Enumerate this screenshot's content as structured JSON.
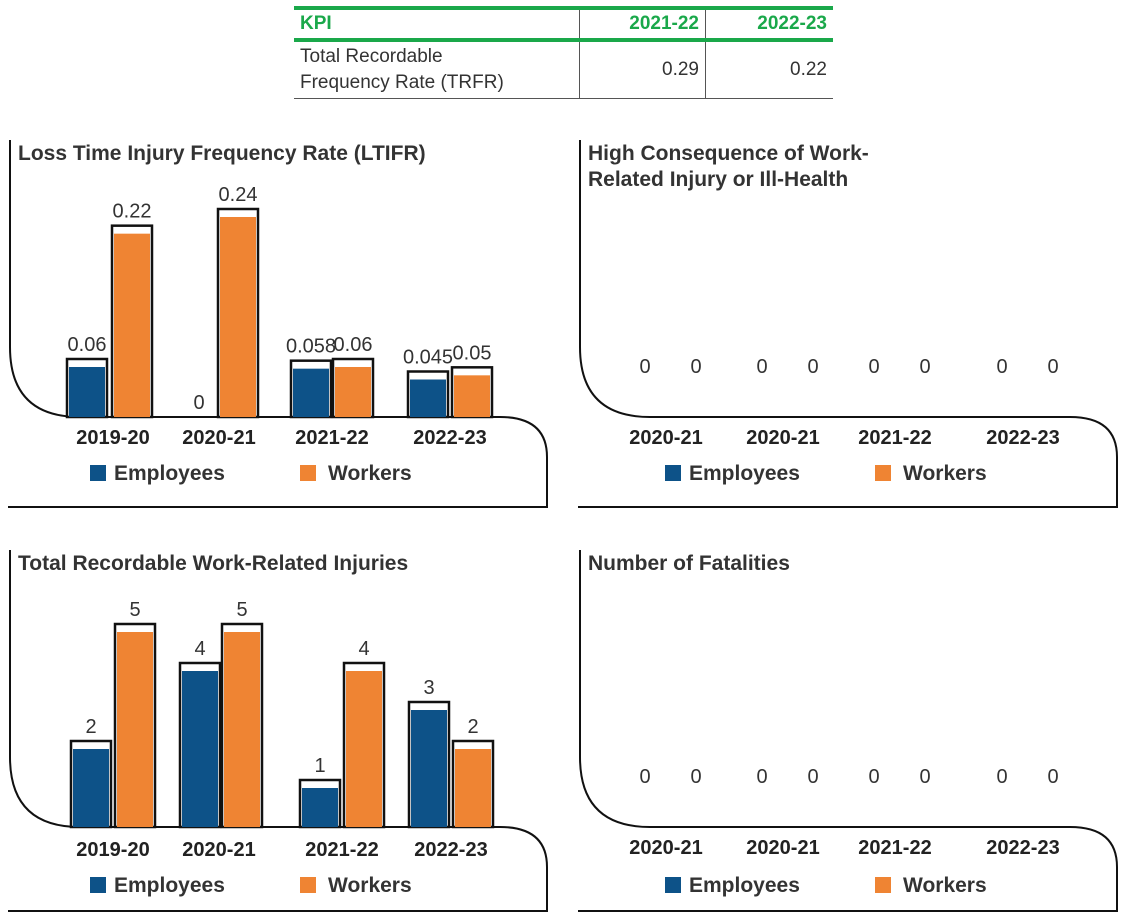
{
  "kpi_table": {
    "headers": [
      "KPI",
      "2021-22",
      "2022-23"
    ],
    "rows": [
      {
        "label_line1": "Total Recordable",
        "label_line2": "Frequency Rate (TRFR)",
        "v1": "0.29",
        "v2": "0.22"
      }
    ]
  },
  "colors": {
    "employees": "#0d5288",
    "workers": "#ef8433",
    "kpi_accent": "#1aa84a"
  },
  "chart_data": [
    {
      "type": "bar",
      "title_lines": [
        "Loss Time Injury Frequency Rate (LTIFR)"
      ],
      "categories": [
        "2019-20",
        "2020-21",
        "2021-22",
        "2022-23"
      ],
      "series": [
        {
          "name": "Employees",
          "values": [
            0.06,
            0,
            0.058,
            0.045
          ],
          "labels": [
            "0.06",
            "0",
            "0.058",
            "0.045"
          ]
        },
        {
          "name": "Workers",
          "values": [
            0.22,
            0.24,
            0.06,
            0.05
          ],
          "labels": [
            "0.22",
            "0.24",
            "0.06",
            "0.05"
          ]
        }
      ],
      "legend": "bottom"
    },
    {
      "type": "bar",
      "title_lines": [
        "High Consequence of Work-",
        "Related Injury or Ill-Health"
      ],
      "categories": [
        "2020-21",
        "2020-21",
        "2021-22",
        "2022-23"
      ],
      "series": [
        {
          "name": "Employees",
          "values": [
            0,
            0,
            0,
            0
          ],
          "labels": [
            "0",
            "0",
            "0",
            "0"
          ]
        },
        {
          "name": "Workers",
          "values": [
            0,
            0,
            0,
            0
          ],
          "labels": [
            "0",
            "0",
            "0",
            "0"
          ]
        }
      ],
      "legend": "bottom"
    },
    {
      "type": "bar",
      "title_lines": [
        "Total Recordable Work-Related Injuries"
      ],
      "categories": [
        "2019-20",
        "2020-21",
        "2021-22",
        "2022-23"
      ],
      "series": [
        {
          "name": "Employees",
          "values": [
            2,
            4,
            1,
            3
          ],
          "labels": [
            "2",
            "4",
            "1",
            "3"
          ]
        },
        {
          "name": "Workers",
          "values": [
            5,
            5,
            4,
            2
          ],
          "labels": [
            "5",
            "5",
            "4",
            "2"
          ]
        }
      ],
      "legend": "bottom"
    },
    {
      "type": "bar",
      "title_lines": [
        "Number of Fatalities"
      ],
      "categories": [
        "2020-21",
        "2020-21",
        "2021-22",
        "2022-23"
      ],
      "series": [
        {
          "name": "Employees",
          "values": [
            0,
            0,
            0,
            0
          ],
          "labels": [
            "0",
            "0",
            "0",
            "0"
          ]
        },
        {
          "name": "Workers",
          "values": [
            0,
            0,
            0,
            0
          ],
          "labels": [
            "0",
            "0",
            "0",
            "0"
          ]
        }
      ],
      "legend": "bottom"
    }
  ]
}
